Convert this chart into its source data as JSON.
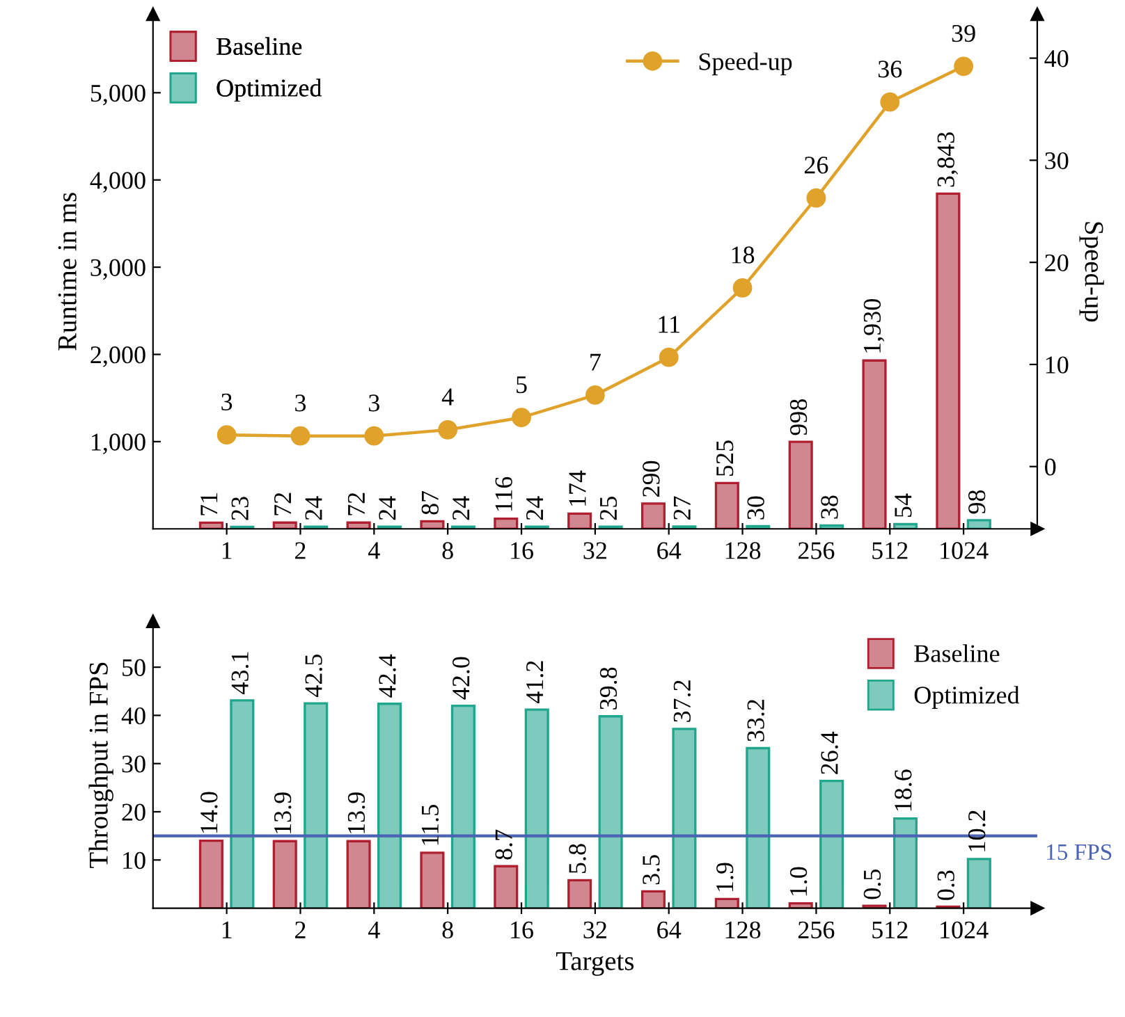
{
  "chart_data": [
    {
      "type": "bar",
      "ylabel": "Runtime in ms",
      "y2label": "Speed-up",
      "categories": [
        "1",
        "2",
        "4",
        "8",
        "16",
        "32",
        "64",
        "128",
        "256",
        "512",
        "1024"
      ],
      "series": [
        {
          "name": "Baseline",
          "color": "#d0878f",
          "values": [
            71,
            72,
            72,
            87,
            116,
            174,
            290,
            525,
            998,
            1930,
            3843
          ],
          "value_labels": [
            "71",
            "72",
            "72",
            "87",
            "116",
            "174",
            "290",
            "525",
            "998",
            "1,930",
            "3,843"
          ]
        },
        {
          "name": "Optimized",
          "color": "#7ecbbd",
          "values": [
            23,
            24,
            24,
            24,
            24,
            25,
            27,
            30,
            38,
            54,
            98
          ],
          "value_labels": [
            "23",
            "24",
            "24",
            "24",
            "24",
            "25",
            "27",
            "30",
            "38",
            "54",
            "98"
          ]
        },
        {
          "name": "Speed-up",
          "type": "line",
          "axis": "y2",
          "color": "#e0a22a",
          "marker": "circle",
          "values": [
            3.1,
            3.0,
            3.0,
            3.6,
            4.8,
            7.0,
            10.7,
            17.5,
            26.3,
            35.7,
            39.2
          ],
          "value_labels": [
            "3",
            "3",
            "3",
            "4",
            "5",
            "7",
            "11",
            "18",
            "26",
            "36",
            "39"
          ]
        }
      ],
      "ylim": [
        0,
        5900
      ],
      "yticks": [
        {
          "value": 1000,
          "label": "1,000"
        },
        {
          "value": 2000,
          "label": "2,000"
        },
        {
          "value": 3000,
          "label": "3,000"
        },
        {
          "value": 4000,
          "label": "4,000"
        },
        {
          "value": 5000,
          "label": "5,000"
        }
      ],
      "y2lim": [
        -6.1,
        44.3
      ],
      "y2ticks": [
        0,
        10,
        20,
        30,
        40
      ],
      "legend": "top left",
      "grid": false
    },
    {
      "type": "bar",
      "xlabel": "Targets",
      "ylabel": "Throughput in FPS",
      "categories": [
        "1",
        "2",
        "4",
        "8",
        "16",
        "32",
        "64",
        "128",
        "256",
        "512",
        "1024"
      ],
      "series": [
        {
          "name": "Baseline",
          "color": "#d0878f",
          "values": [
            14.0,
            13.9,
            13.9,
            11.5,
            8.7,
            5.8,
            3.5,
            1.9,
            1.0,
            0.5,
            0.3
          ],
          "value_labels": [
            "14.0",
            "13.9",
            "13.9",
            "11.5",
            "8.7",
            "5.8",
            "3.5",
            "1.9",
            "1.0",
            "0.5",
            "0.3"
          ]
        },
        {
          "name": "Optimized",
          "color": "#7ecbbd",
          "values": [
            43.1,
            42.5,
            42.4,
            42.0,
            41.2,
            39.8,
            37.2,
            33.2,
            26.4,
            18.6,
            10.2
          ],
          "value_labels": [
            "43.1",
            "42.5",
            "42.4",
            "42.0",
            "41.2",
            "39.8",
            "37.2",
            "33.2",
            "26.4",
            "18.6",
            "10.2"
          ]
        }
      ],
      "ylim": [
        0,
        59.5
      ],
      "yticks": [
        10,
        20,
        30,
        40,
        50
      ],
      "ref_lines": [
        {
          "axis": "y",
          "value": 15,
          "label": "15 FPS",
          "color": "#4a63b5"
        }
      ],
      "legend": "top right",
      "grid": false
    }
  ]
}
